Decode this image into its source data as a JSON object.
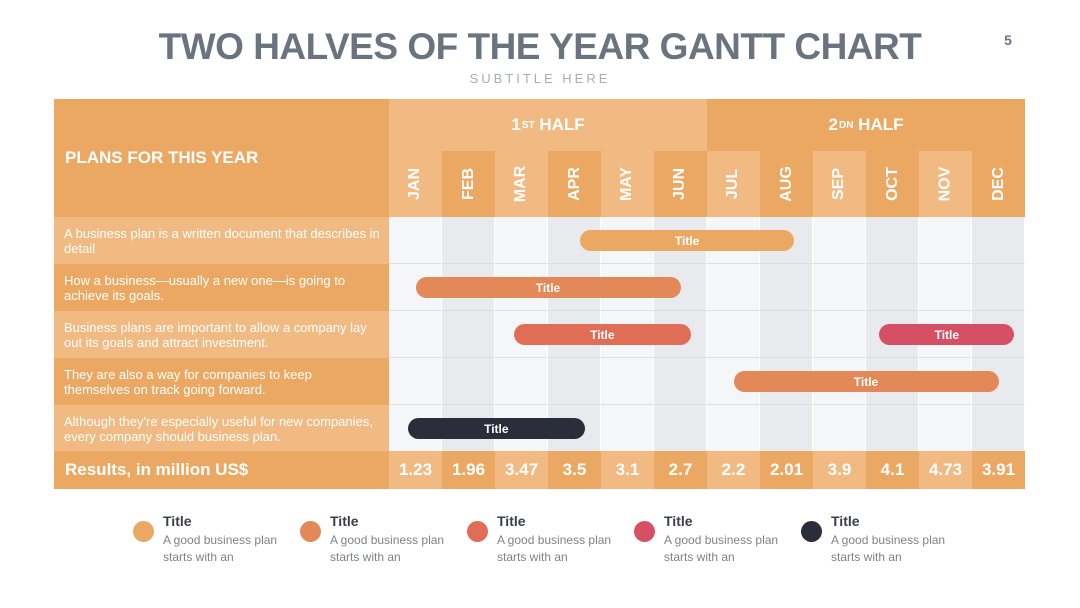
{
  "page": {
    "title": "TWO HALVES OF THE YEAR GANTT CHART",
    "subtitle": "SUBTITLE HERE",
    "page_number": "5"
  },
  "colors": {
    "orange_light": "#f0ba82",
    "orange": "#eba863",
    "coral": "#e38958",
    "red_orange": "#e06e57",
    "crimson": "#d65065",
    "navy": "#2a2e3b"
  },
  "chart_data": {
    "type": "gantt",
    "header": "PLANS FOR THIS YEAR",
    "halves": [
      {
        "label": "1",
        "sup": "ST",
        "suffix": " HALF"
      },
      {
        "label": "2",
        "sup": "DN",
        "suffix": " HALF"
      }
    ],
    "months": [
      "JAN",
      "FEB",
      "MAR",
      "APR",
      "MAY",
      "JUN",
      "JUL",
      "AUG",
      "SEP",
      "OCT",
      "NOV",
      "DEC"
    ],
    "tasks": [
      {
        "text": "A business plan is a written document that describes in detail",
        "bars": [
          {
            "label": "Title",
            "start": 3.6,
            "end": 7.65,
            "color": "#eba863"
          }
        ]
      },
      {
        "text": "How a business—usually a new one—is going to achieve its goals.",
        "bars": [
          {
            "label": "Title",
            "start": 0.5,
            "end": 5.5,
            "color": "#e38958"
          }
        ]
      },
      {
        "text": "Business plans are important to allow a company lay out its goals and attract investment.",
        "bars": [
          {
            "label": "Title",
            "start": 2.35,
            "end": 5.7,
            "color": "#e06e57"
          },
          {
            "label": "Title",
            "start": 9.25,
            "end": 11.8,
            "color": "#d65065"
          }
        ]
      },
      {
        "text": "They are also a way for companies to keep themselves on track going forward.",
        "bars": [
          {
            "label": "Title",
            "start": 6.5,
            "end": 11.5,
            "color": "#e38958"
          }
        ]
      },
      {
        "text": "Although they're especially useful for new companies, every company should business plan.",
        "bars": [
          {
            "label": "Title",
            "start": 0.35,
            "end": 3.7,
            "color": "#2a2e3b"
          }
        ]
      }
    ],
    "results_label": "Results, in million US$",
    "results": [
      "1.23",
      "1.96",
      "3.47",
      "3.5",
      "3.1",
      "2.7",
      "2.2",
      "2.01",
      "3.9",
      "4.1",
      "4.73",
      "3.91"
    ]
  },
  "legend": [
    {
      "title": "Title",
      "desc": "A good business plan starts with an",
      "color": "#eba863"
    },
    {
      "title": "Title",
      "desc": "A good business plan starts with an",
      "color": "#e38958"
    },
    {
      "title": "Title",
      "desc": "A good business plan starts with an",
      "color": "#e06e57"
    },
    {
      "title": "Title",
      "desc": "A good business plan starts with an",
      "color": "#d65065"
    },
    {
      "title": "Title",
      "desc": "A good business plan starts with an",
      "color": "#2a2e3b"
    }
  ]
}
